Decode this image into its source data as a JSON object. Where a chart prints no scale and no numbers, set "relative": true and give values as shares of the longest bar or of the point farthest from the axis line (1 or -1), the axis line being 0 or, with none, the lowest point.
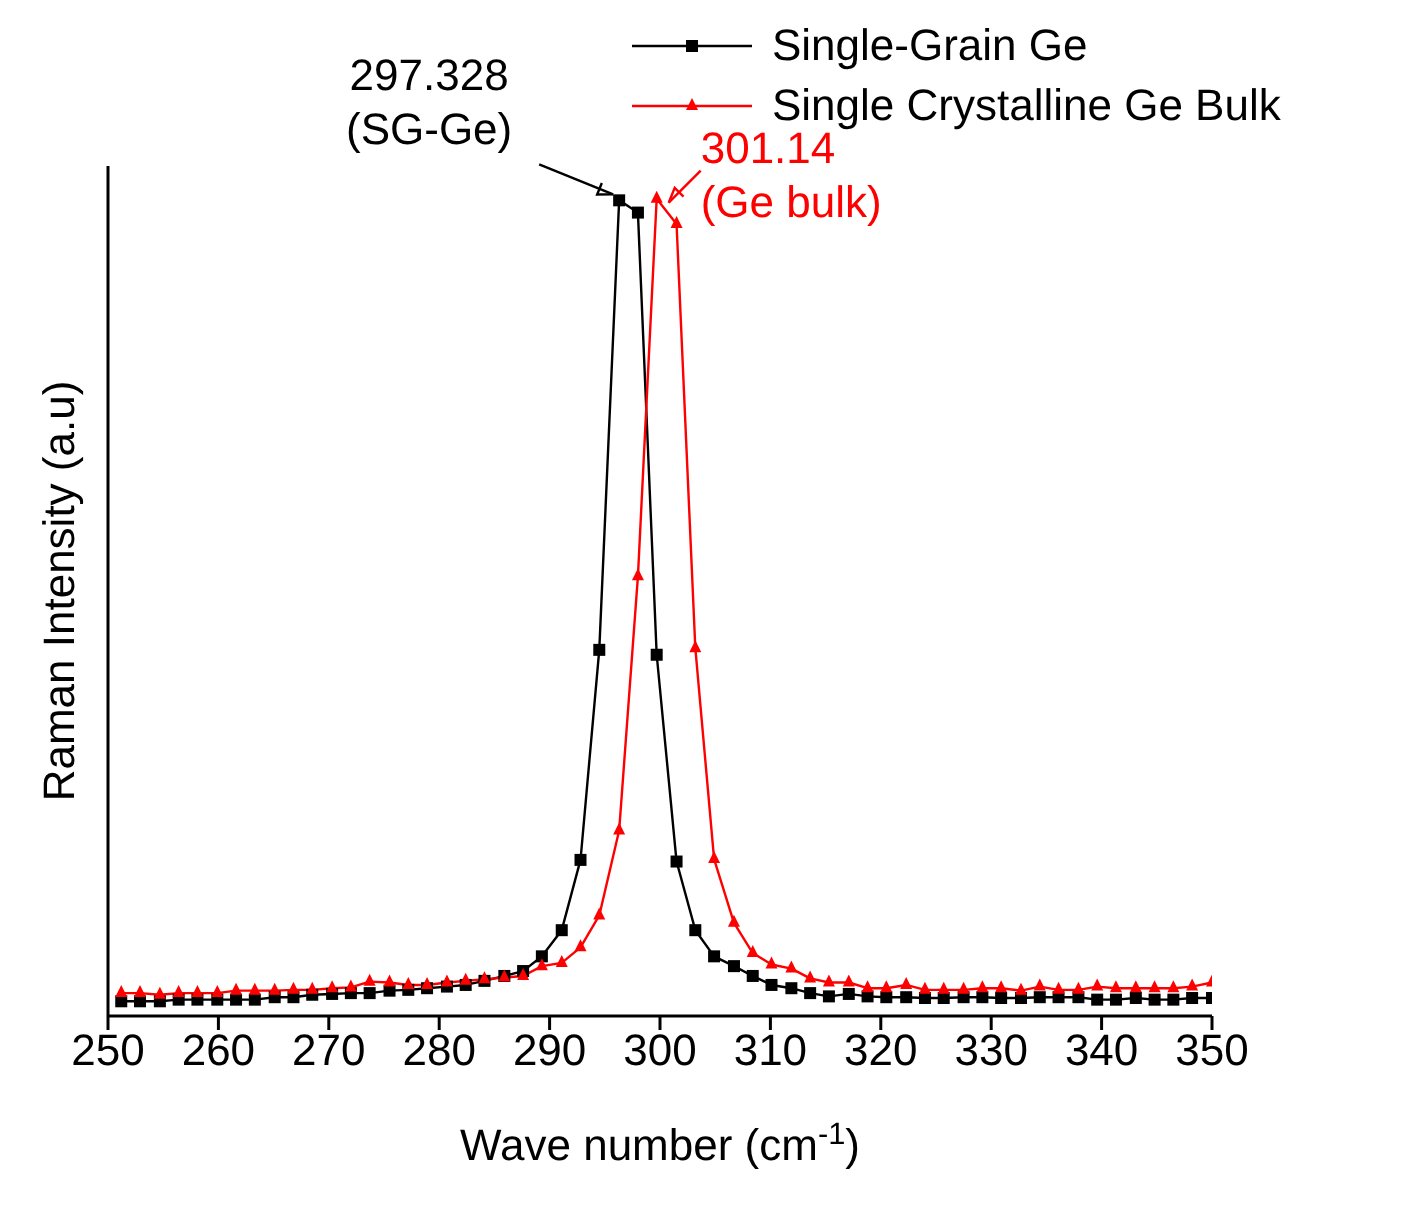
{
  "chart_data": {
    "type": "line",
    "relative": true,
    "xlabel": "Wave number (cm$^{-1}$)",
    "ylabel": "Raman Intensity (a.u)",
    "xlim": [
      250,
      350
    ],
    "xticks": [
      250,
      260,
      270,
      280,
      290,
      300,
      310,
      320,
      330,
      340,
      350
    ],
    "legend": "top right",
    "line_style": "solid",
    "x": [
      251.2,
      252.9,
      254.7,
      256.4,
      258.1,
      259.9,
      261.6,
      263.3,
      265.1,
      266.8,
      268.5,
      270.3,
      272.0,
      273.7,
      275.5,
      277.2,
      278.9,
      280.7,
      282.4,
      284.1,
      285.9,
      287.6,
      289.3,
      291.1,
      292.8,
      294.5,
      296.3,
      298.0,
      299.7,
      301.5,
      303.2,
      304.9,
      306.7,
      308.4,
      310.1,
      311.9,
      313.6,
      315.3,
      317.1,
      318.8,
      320.5,
      322.3,
      324.0,
      325.7,
      327.5,
      329.2,
      330.9,
      332.7,
      334.4,
      336.1,
      337.9,
      339.6,
      341.3,
      343.1,
      344.8,
      346.5,
      348.2,
      350.0
    ],
    "series": [
      {
        "name": "Single-Grain Ge",
        "color": "#000000",
        "marker": "square",
        "values": [
          0.018,
          0.018,
          0.018,
          0.02,
          0.02,
          0.02,
          0.02,
          0.02,
          0.023,
          0.023,
          0.026,
          0.027,
          0.028,
          0.028,
          0.031,
          0.032,
          0.034,
          0.036,
          0.038,
          0.043,
          0.049,
          0.055,
          0.073,
          0.105,
          0.191,
          0.448,
          0.998,
          0.983,
          0.442,
          0.189,
          0.105,
          0.073,
          0.061,
          0.049,
          0.038,
          0.034,
          0.028,
          0.024,
          0.027,
          0.024,
          0.023,
          0.023,
          0.022,
          0.022,
          0.023,
          0.023,
          0.022,
          0.022,
          0.023,
          0.023,
          0.023,
          0.02,
          0.02,
          0.022,
          0.02,
          0.02,
          0.022,
          0.022
        ]
      },
      {
        "name": "Single Crystalline Ge Bulk",
        "color": "#ff0000",
        "marker": "triangle",
        "values": [
          0.028,
          0.028,
          0.026,
          0.028,
          0.028,
          0.028,
          0.031,
          0.031,
          0.031,
          0.032,
          0.032,
          0.034,
          0.035,
          0.042,
          0.041,
          0.038,
          0.038,
          0.041,
          0.043,
          0.045,
          0.047,
          0.049,
          0.061,
          0.065,
          0.084,
          0.123,
          0.227,
          0.538,
          1.0,
          0.969,
          0.45,
          0.192,
          0.114,
          0.077,
          0.063,
          0.058,
          0.046,
          0.041,
          0.041,
          0.034,
          0.034,
          0.038,
          0.032,
          0.032,
          0.032,
          0.034,
          0.034,
          0.031,
          0.036,
          0.032,
          0.032,
          0.036,
          0.034,
          0.034,
          0.034,
          0.034,
          0.036,
          0.041
        ]
      }
    ],
    "annotations": [
      "297.328 (SG-Ge)",
      "301.14 (Ge bulk)"
    ]
  }
}
